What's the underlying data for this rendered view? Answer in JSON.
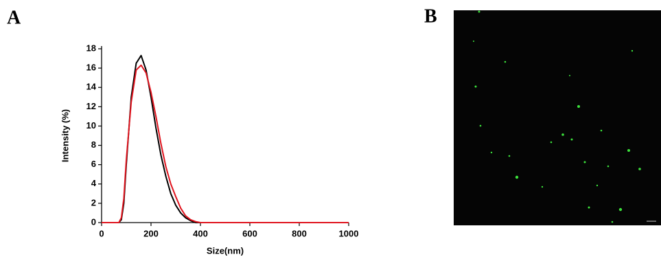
{
  "panel_labels": [
    "A",
    "B"
  ],
  "chart_data": {
    "type": "line",
    "x_label": "Size(nm)",
    "y_label": "Intensity (%)",
    "x": [
      0,
      60,
      70,
      80,
      90,
      100,
      120,
      140,
      160,
      180,
      200,
      220,
      240,
      260,
      280,
      300,
      320,
      340,
      360,
      380,
      400,
      1000
    ],
    "series": [
      {
        "color": "#000000",
        "values": [
          0,
          0,
          0,
          0.3,
          2,
          6,
          13,
          16.5,
          17.3,
          15.8,
          13,
          9.8,
          7,
          4.8,
          3,
          1.8,
          1,
          0.5,
          0.2,
          0,
          0,
          0
        ]
      },
      {
        "color": "#e0141e",
        "values": [
          0,
          0,
          0,
          0.5,
          2.5,
          6.5,
          12.5,
          15.8,
          16.3,
          15.5,
          13.5,
          11,
          8.2,
          5.8,
          4,
          2.7,
          1.5,
          0.7,
          0.3,
          0.1,
          0,
          0
        ]
      }
    ],
    "xlim": [
      0,
      1000
    ],
    "xticks": [
      0,
      200,
      400,
      600,
      800,
      1000
    ],
    "ylim": [
      0,
      18
    ],
    "yticks": [
      0,
      2,
      4,
      6,
      8,
      10,
      12,
      14,
      16,
      18
    ]
  }
}
